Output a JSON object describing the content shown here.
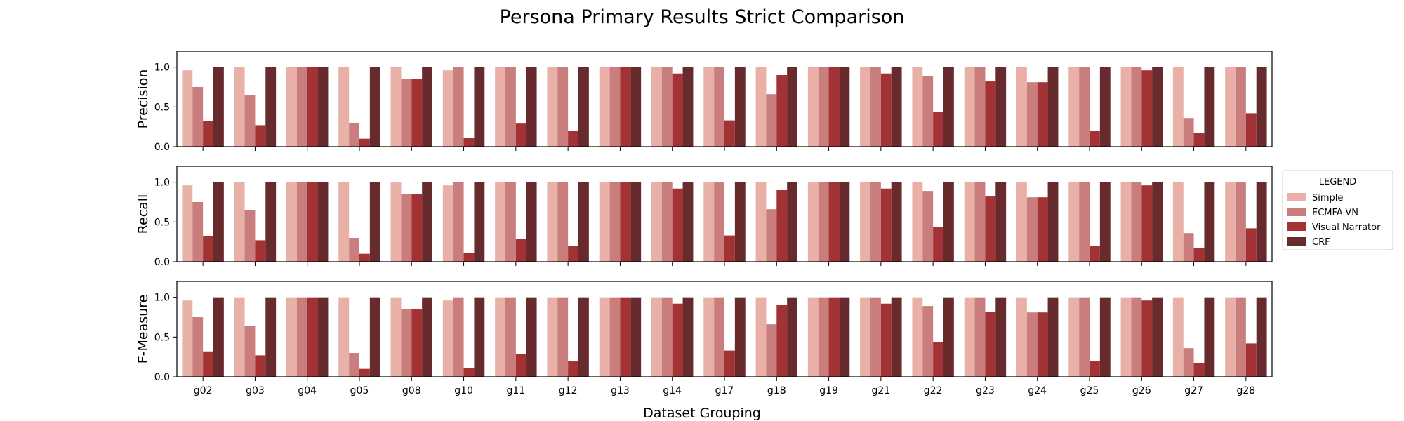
{
  "chart_data": {
    "type": "bar",
    "title": "Persona Primary Results Strict Comparison",
    "xlabel": "Dataset Grouping",
    "categories": [
      "g02",
      "g03",
      "g04",
      "g05",
      "g08",
      "g10",
      "g11",
      "g12",
      "g13",
      "g14",
      "g17",
      "g18",
      "g19",
      "g21",
      "g22",
      "g23",
      "g24",
      "g25",
      "g26",
      "g27",
      "g28"
    ],
    "legend": {
      "title": "LEGEND",
      "placement": "center-right",
      "entries": [
        {
          "name": "Simple",
          "color": "#e8b0a6"
        },
        {
          "name": "ECMFA-VN",
          "color": "#c97d7d"
        },
        {
          "name": "Visual Narrator",
          "color": "#a23234"
        },
        {
          "name": "CRF",
          "color": "#672a2d"
        }
      ]
    },
    "ylim": [
      0,
      1.2
    ],
    "yticks": [
      0.0,
      0.5,
      1.0
    ],
    "panels": [
      {
        "ylabel": "Precision",
        "series": [
          {
            "name": "Simple",
            "values": [
              0.96,
              1,
              1,
              1,
              1,
              0.96,
              1,
              1,
              1,
              1,
              1,
              1,
              1,
              1,
              1,
              1,
              1,
              1,
              1,
              1,
              1
            ]
          },
          {
            "name": "ECMFA-VN",
            "values": [
              0.75,
              0.65,
              1,
              0.3,
              0.85,
              1,
              1,
              1,
              1,
              1,
              1,
              0.66,
              1,
              1,
              0.89,
              1,
              0.81,
              1,
              1,
              0.36,
              1
            ]
          },
          {
            "name": "Visual Narrator",
            "values": [
              0.32,
              0.27,
              1,
              0.1,
              0.85,
              0.11,
              0.29,
              0.2,
              1,
              0.92,
              0.33,
              0.9,
              1,
              0.92,
              0.44,
              0.82,
              0.81,
              0.2,
              0.96,
              0.17,
              0.42
            ]
          },
          {
            "name": "CRF",
            "values": [
              1,
              1,
              1,
              1,
              1,
              1,
              1,
              1,
              1,
              1,
              1,
              1,
              1,
              1,
              1,
              1,
              1,
              1,
              1,
              1,
              1
            ]
          }
        ]
      },
      {
        "ylabel": "Recall",
        "series": [
          {
            "name": "Simple",
            "values": [
              0.96,
              1,
              1,
              1,
              1,
              0.96,
              1,
              1,
              1,
              1,
              1,
              1,
              1,
              1,
              1,
              1,
              1,
              1,
              1,
              1,
              1
            ]
          },
          {
            "name": "ECMFA-VN",
            "values": [
              0.75,
              0.65,
              1,
              0.3,
              0.85,
              1,
              1,
              1,
              1,
              1,
              1,
              0.66,
              1,
              1,
              0.89,
              1,
              0.81,
              1,
              1,
              0.36,
              1
            ]
          },
          {
            "name": "Visual Narrator",
            "values": [
              0.32,
              0.27,
              1,
              0.1,
              0.85,
              0.11,
              0.29,
              0.2,
              1,
              0.92,
              0.33,
              0.9,
              1,
              0.92,
              0.44,
              0.82,
              0.81,
              0.2,
              0.96,
              0.17,
              0.42
            ]
          },
          {
            "name": "CRF",
            "values": [
              1,
              1,
              1,
              1,
              1,
              1,
              1,
              1,
              1,
              1,
              1,
              1,
              1,
              1,
              1,
              1,
              1,
              1,
              1,
              1,
              1
            ]
          }
        ]
      },
      {
        "ylabel": "F-Measure",
        "series": [
          {
            "name": "Simple",
            "values": [
              0.96,
              1,
              1,
              1,
              1,
              0.96,
              1,
              1,
              1,
              1,
              1,
              1,
              1,
              1,
              1,
              1,
              1,
              1,
              1,
              1,
              1
            ]
          },
          {
            "name": "ECMFA-VN",
            "values": [
              0.75,
              0.64,
              1,
              0.3,
              0.85,
              1,
              1,
              1,
              1,
              1,
              1,
              0.66,
              1,
              1,
              0.89,
              1,
              0.81,
              1,
              1,
              0.36,
              1
            ]
          },
          {
            "name": "Visual Narrator",
            "values": [
              0.32,
              0.27,
              1,
              0.1,
              0.85,
              0.11,
              0.29,
              0.2,
              1,
              0.92,
              0.33,
              0.9,
              1,
              0.92,
              0.44,
              0.82,
              0.81,
              0.2,
              0.96,
              0.17,
              0.42
            ]
          },
          {
            "name": "CRF",
            "values": [
              1,
              1,
              1,
              1,
              1,
              1,
              1,
              1,
              1,
              1,
              1,
              1,
              1,
              1,
              1,
              1,
              1,
              1,
              1,
              1,
              1
            ]
          }
        ]
      }
    ]
  }
}
